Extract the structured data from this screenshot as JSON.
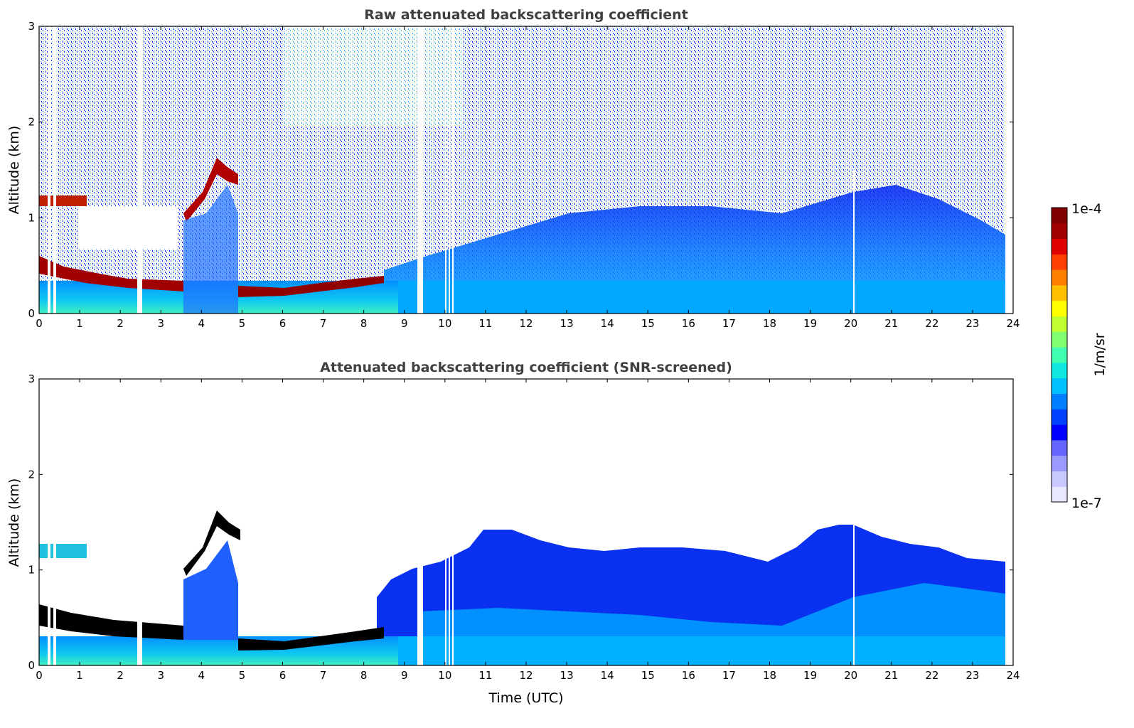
{
  "chart_data": [
    {
      "type": "heatmap",
      "title": "Raw attenuated backscattering coefficient",
      "xlabel": "",
      "ylabel": "Altitude (km)",
      "xlim": [
        0,
        24
      ],
      "ylim": [
        0,
        3
      ],
      "xticks": [
        "0",
        "1",
        "2",
        "3",
        "4",
        "5",
        "6",
        "7",
        "8",
        "9",
        "10",
        "11",
        "12",
        "13",
        "14",
        "15",
        "16",
        "17",
        "18",
        "19",
        "20",
        "21",
        "22",
        "23",
        "24"
      ],
      "yticks": [
        "0",
        "1",
        "2",
        "3"
      ],
      "layers": [
        {
          "x": [
            0.0,
            3.6
          ],
          "lower": 0.25,
          "upper": 0.6,
          "value": "1e-4"
        },
        {
          "x": [
            3.6,
            4.9
          ],
          "upper_peak": 1.6,
          "value": "1e-4"
        },
        {
          "x": [
            5.0,
            8.6
          ],
          "lower": 0.2,
          "upper": 0.4,
          "value": "1e-4"
        },
        {
          "x": [
            9.0,
            23.8
          ],
          "lower": 0.0,
          "upper": 1.2,
          "value": "1e-6"
        }
      ],
      "gaps_x": [
        0.28,
        0.42,
        2.5,
        9.4,
        10.05,
        10.15,
        10.25,
        20.05
      ]
    },
    {
      "type": "heatmap",
      "title": "Attenuated backscattering coefficient (SNR-screened)",
      "xlabel": "Time (UTC)",
      "ylabel": "Altitude (km)",
      "xlim": [
        0,
        24
      ],
      "ylim": [
        0,
        3
      ],
      "xticks": [
        "0",
        "1",
        "2",
        "3",
        "4",
        "5",
        "6",
        "7",
        "8",
        "9",
        "10",
        "11",
        "12",
        "13",
        "14",
        "15",
        "16",
        "17",
        "18",
        "19",
        "20",
        "21",
        "22",
        "23",
        "24"
      ],
      "yticks": [
        "0",
        "1",
        "2",
        "3"
      ],
      "screened_top_km": [
        [
          0,
          0.7
        ],
        [
          3.6,
          1.1
        ],
        [
          4.5,
          1.6
        ],
        [
          5.0,
          0.35
        ],
        [
          8.3,
          0.4
        ],
        [
          9.0,
          1.0
        ],
        [
          11.0,
          1.4
        ],
        [
          13.0,
          1.2
        ],
        [
          17.0,
          1.0
        ],
        [
          19.0,
          1.4
        ],
        [
          20.0,
          1.5
        ],
        [
          22.0,
          1.3
        ],
        [
          23.8,
          1.1
        ]
      ]
    }
  ],
  "colorbar": {
    "label": "1/m/sr",
    "max_label": "1e-4",
    "min_label": "1e-7",
    "scale": "log",
    "colors": [
      "#e8e8ff",
      "#c8c8ff",
      "#9a9aff",
      "#6464ff",
      "#0000ff",
      "#0040ff",
      "#0080ff",
      "#00c0ff",
      "#10e8e0",
      "#40ffb0",
      "#80ff70",
      "#c0ff30",
      "#ffff00",
      "#ffc000",
      "#ff8000",
      "#ff4000",
      "#e00000",
      "#a00000",
      "#800000"
    ]
  }
}
